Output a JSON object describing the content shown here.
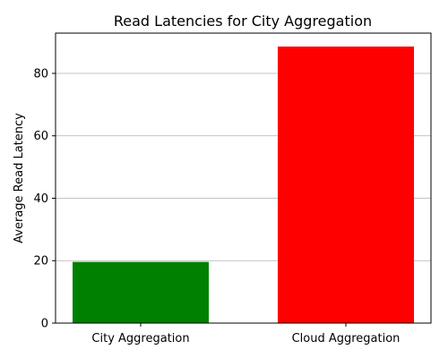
{
  "chart_data": {
    "type": "bar",
    "title": "Read Latencies for City Aggregation",
    "xlabel": "",
    "ylabel": "Average Read Latency",
    "categories": [
      "City Aggregation",
      "Cloud Aggregation"
    ],
    "values": [
      19.6,
      88.6
    ],
    "colors": [
      "#008000",
      "#ff0000"
    ],
    "ylim": [
      0,
      92.9
    ],
    "yticks": [
      0,
      20,
      40,
      60,
      80
    ],
    "grid": "y-major"
  }
}
